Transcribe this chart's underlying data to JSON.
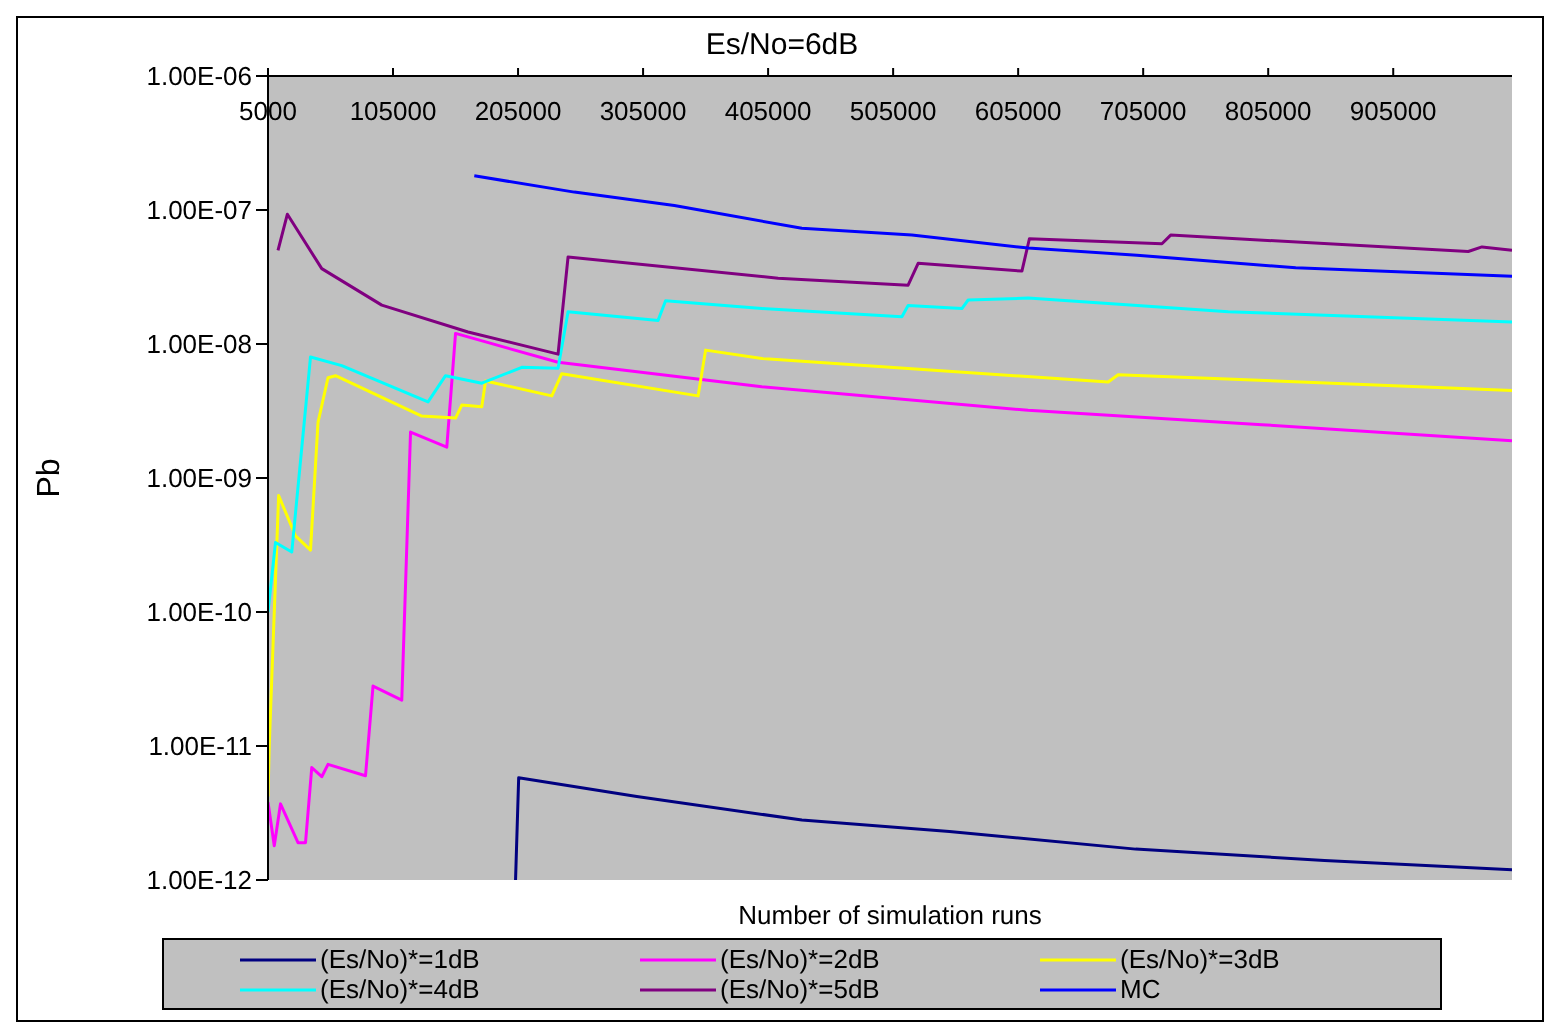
{
  "chart_data": {
    "type": "line",
    "title": "Es/No=6dB",
    "xlabel": "Number of simulation runs",
    "ylabel": "Pb",
    "log": "y",
    "xlim": [
      5000,
      1000000
    ],
    "xticks": [
      5000,
      105000,
      205000,
      305000,
      405000,
      505000,
      605000,
      705000,
      805000,
      905000
    ],
    "ylim": [
      1e-12,
      1e-06
    ],
    "yticks": [
      {
        "value": 1e-06,
        "label": "1.00E-06"
      },
      {
        "value": 1e-07,
        "label": "1.00E-07"
      },
      {
        "value": 1e-08,
        "label": "1.00E-08"
      },
      {
        "value": 1e-09,
        "label": "1.00E-09"
      },
      {
        "value": 1e-10,
        "label": "1.00E-10"
      },
      {
        "value": 1e-11,
        "label": "1.00E-11"
      },
      {
        "value": 1e-12,
        "label": "1.00E-12"
      }
    ],
    "grid": false,
    "legend": "bottom",
    "marker": "none",
    "line_style": "solid",
    "series": [
      {
        "name": "(Es/No)*=1dB",
        "color": "#000080",
        "x": [
          203000,
          205500,
          300000,
          432000,
          550000,
          699000,
          850000,
          1000000
        ],
        "values": [
          1e-12,
          5.8e-12,
          4.2e-12,
          2.8e-12,
          2.3e-12,
          1.7e-12,
          1.4e-12,
          1.19e-12
        ]
      },
      {
        "name": "(Es/No)*=2dB",
        "color": "#ff00ff",
        "x": [
          5000,
          10000,
          15000,
          29000,
          35000,
          40000,
          48000,
          53000,
          83000,
          89000,
          112000,
          119000,
          148000,
          155000,
          237000,
          400000,
          613000,
          800000,
          1000000
        ],
        "values": [
          3.8e-12,
          1.8e-12,
          3.7e-12,
          1.9e-12,
          1.9e-12,
          6.9e-12,
          5.9e-12,
          7.3e-12,
          6e-12,
          2.8e-11,
          2.2e-11,
          2.2e-09,
          1.7e-09,
          1.2e-08,
          7.3e-09,
          4.8e-09,
          3.2e-09,
          2.5e-09,
          1.9e-09
        ]
      },
      {
        "name": "(Es/No)*=3dB",
        "color": "#ffff00",
        "x": [
          5000,
          6000,
          13500,
          27000,
          39000,
          45000,
          53000,
          59000,
          128000,
          155000,
          160000,
          176000,
          179000,
          232000,
          240000,
          349000,
          355000,
          400000,
          677000,
          685000,
          1000000
        ],
        "values": [
          4.2e-12,
          1e-11,
          7.4e-10,
          3.7e-10,
          2.9e-10,
          2.6e-09,
          5.6e-09,
          5.8e-09,
          2.9e-09,
          2.8e-09,
          3.5e-09,
          3.4e-09,
          5.3e-09,
          4.1e-09,
          6e-09,
          4.1e-09,
          9e-09,
          7.8e-09,
          5.2e-09,
          5.9e-09,
          4.5e-09
        ]
      },
      {
        "name": "(Es/No)*=4dB",
        "color": "#00ffff",
        "x": [
          5000,
          11000,
          24000,
          39000,
          64000,
          133000,
          147000,
          176000,
          208000,
          237000,
          245000,
          317000,
          323000,
          400000,
          512000,
          517000,
          560000,
          565000,
          613000,
          773000,
          1000000
        ],
        "values": [
          1e-10,
          3.3e-10,
          2.8e-10,
          8e-09,
          6.9e-09,
          3.7e-09,
          5.8e-09,
          5.1e-09,
          6.7e-09,
          6.6e-09,
          1.74e-08,
          1.5e-08,
          2.1e-08,
          1.84e-08,
          1.6e-08,
          1.94e-08,
          1.84e-08,
          2.13e-08,
          2.2e-08,
          1.74e-08,
          1.46e-08
        ]
      },
      {
        "name": "(Es/No)*=5dB",
        "color": "#800080",
        "x": [
          13000,
          20500,
          48000,
          96000,
          165000,
          237000,
          245000,
          413000,
          517000,
          525000,
          608000,
          614000,
          720000,
          727000,
          965000,
          976000,
          1000000
        ],
        "values": [
          5e-08,
          9.3e-08,
          3.65e-08,
          1.95e-08,
          1.23e-08,
          8.4e-09,
          4.46e-08,
          3.1e-08,
          2.75e-08,
          4e-08,
          3.5e-08,
          6.1e-08,
          5.6e-08,
          6.5e-08,
          4.9e-08,
          5.3e-08,
          5e-08
        ]
      },
      {
        "name": "MC",
        "color": "#0000ff",
        "x": [
          170000,
          250000,
          330000,
          432000,
          520000,
          613000,
          700000,
          827000,
          1000000
        ],
        "values": [
          1.8e-07,
          1.36e-07,
          1.08e-07,
          7.3e-08,
          6.5e-08,
          5.2e-08,
          4.6e-08,
          3.7e-08,
          3.2e-08
        ]
      }
    ]
  }
}
